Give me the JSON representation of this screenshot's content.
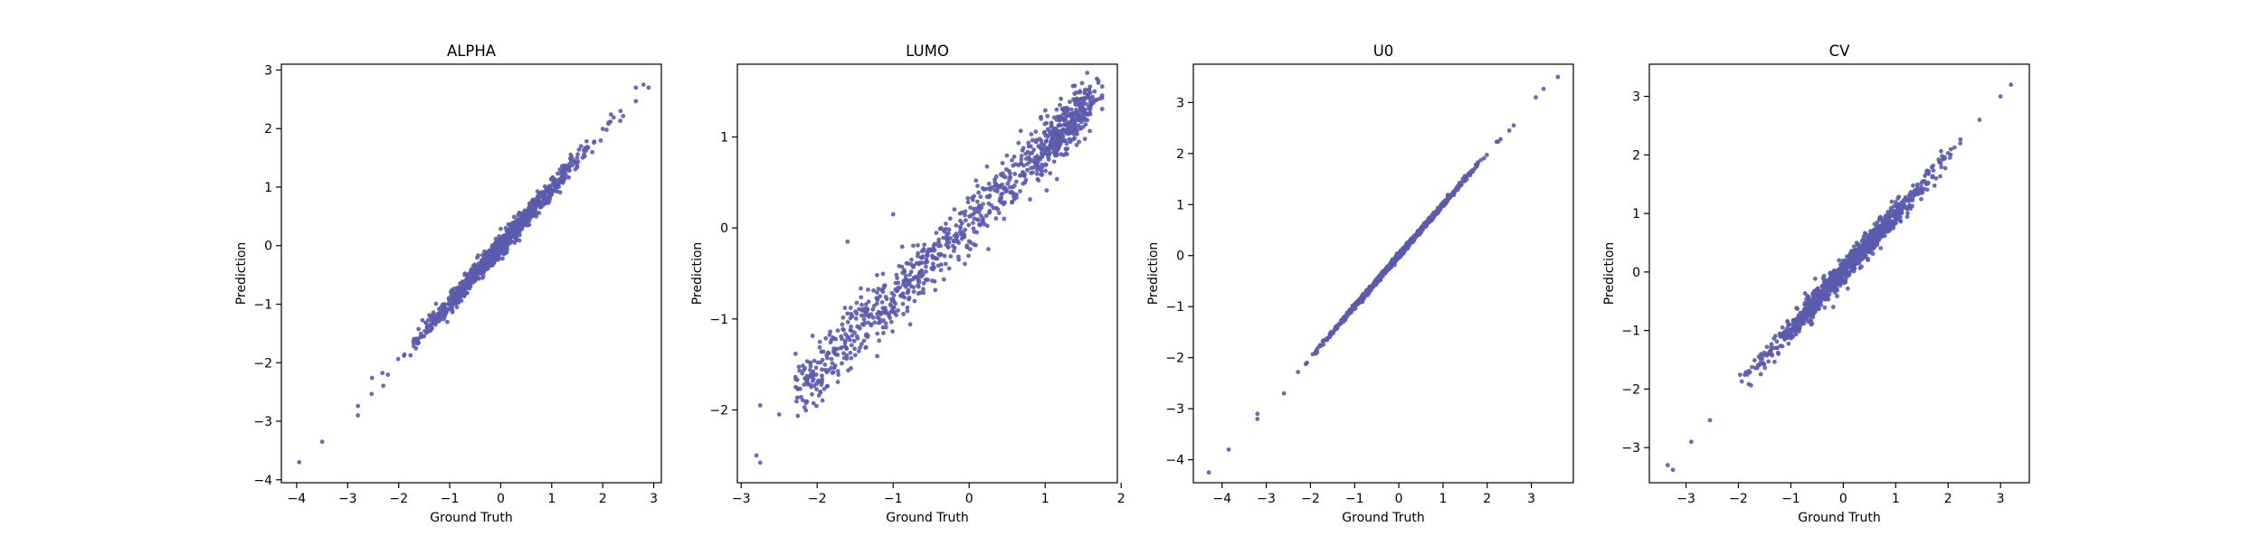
{
  "figure": {
    "point_color": "#5B5BAE",
    "point_count_per_panel": 1000
  },
  "chart_data": [
    {
      "type": "scatter",
      "title": "ALPHA",
      "xlabel": "Ground Truth",
      "ylabel": "Prediction",
      "xlim": [
        -4.3,
        3.15
      ],
      "ylim": [
        -4.05,
        3.1
      ],
      "xticks": [
        -4,
        -3,
        -2,
        -1,
        0,
        1,
        2,
        3
      ],
      "yticks": [
        -4,
        -3,
        -2,
        -1,
        0,
        1,
        2,
        3
      ],
      "trend": {
        "slope": 0.99,
        "intercept": 0.0,
        "noise_sd": 0.09
      },
      "extremes": [
        [
          -3.95,
          -3.7
        ],
        [
          -3.5,
          -3.35
        ],
        [
          -2.8,
          -2.9
        ],
        [
          2.65,
          2.7
        ],
        [
          2.8,
          2.75
        ],
        [
          2.9,
          2.7
        ],
        [
          2.35,
          2.3
        ]
      ]
    },
    {
      "type": "scatter",
      "title": "LUMO",
      "xlabel": "Ground Truth",
      "ylabel": "Prediction",
      "xlim": [
        -3.05,
        1.95
      ],
      "ylim": [
        -2.8,
        1.8
      ],
      "xticks": [
        -3,
        -2,
        -1,
        0,
        1,
        2
      ],
      "yticks": [
        -2,
        -1,
        0,
        1
      ],
      "trend": {
        "slope": 0.83,
        "intercept": 0.05,
        "noise_sd": 0.15
      },
      "extremes": [
        [
          -2.8,
          -2.5
        ],
        [
          -2.75,
          -2.58
        ],
        [
          -2.75,
          -1.95
        ],
        [
          -2.5,
          -2.05
        ],
        [
          -1.6,
          -0.15
        ],
        [
          -1.0,
          0.15
        ],
        [
          1.7,
          1.62
        ],
        [
          1.65,
          1.5
        ]
      ]
    },
    {
      "type": "scatter",
      "title": "U0",
      "xlabel": "Ground Truth",
      "ylabel": "Prediction",
      "xlim": [
        -4.65,
        3.95
      ],
      "ylim": [
        -4.45,
        3.75
      ],
      "xticks": [
        -4,
        -3,
        -2,
        -1,
        0,
        1,
        2,
        3
      ],
      "yticks": [
        -4,
        -3,
        -2,
        -1,
        0,
        1,
        2,
        3
      ],
      "trend": {
        "slope": 1.0,
        "intercept": 0.0,
        "noise_sd": 0.025
      },
      "extremes": [
        [
          -4.3,
          -4.25
        ],
        [
          -3.85,
          -3.8
        ],
        [
          -3.2,
          -3.2
        ],
        [
          -3.2,
          -3.1
        ],
        [
          -2.6,
          -2.7
        ],
        [
          3.1,
          3.1
        ],
        [
          3.6,
          3.5
        ],
        [
          2.6,
          2.55
        ],
        [
          2.5,
          2.45
        ]
      ]
    },
    {
      "type": "scatter",
      "title": "CV",
      "xlabel": "Ground Truth",
      "ylabel": "Prediction",
      "xlim": [
        -3.7,
        3.55
      ],
      "ylim": [
        -3.6,
        3.55
      ],
      "xticks": [
        -3,
        -2,
        -1,
        0,
        1,
        2,
        3
      ],
      "yticks": [
        -3,
        -2,
        -1,
        0,
        1,
        2,
        3
      ],
      "trend": {
        "slope": 0.98,
        "intercept": 0.0,
        "noise_sd": 0.11
      },
      "extremes": [
        [
          -3.35,
          -3.3
        ],
        [
          -3.25,
          -3.38
        ],
        [
          -2.9,
          -2.9
        ],
        [
          3.2,
          3.2
        ],
        [
          3.0,
          3.0
        ],
        [
          2.6,
          2.6
        ]
      ]
    }
  ]
}
